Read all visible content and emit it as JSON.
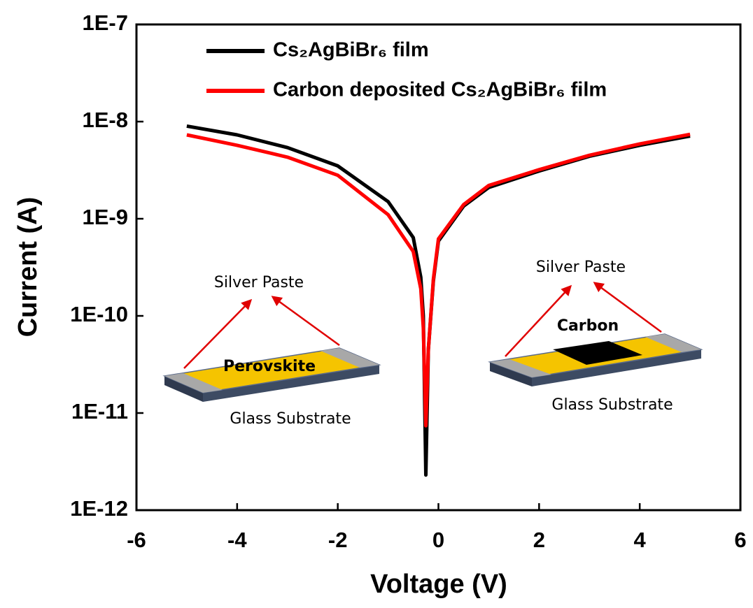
{
  "chart_data": {
    "type": "line",
    "x_label": "Voltage (V)",
    "y_label": "Current (A)",
    "xlim": [
      -6,
      6
    ],
    "xticks": [
      -6,
      -4,
      -2,
      0,
      2,
      4,
      6
    ],
    "ylim": [
      1e-12,
      1e-07
    ],
    "y_scale": "log",
    "yticks": [
      {
        "value": 1e-12,
        "label": "1E-12"
      },
      {
        "value": 1e-11,
        "label": "1E-11"
      },
      {
        "value": 1e-10,
        "label": "1E-10"
      },
      {
        "value": 1e-09,
        "label": "1E-9"
      },
      {
        "value": 1e-08,
        "label": "1E-8"
      },
      {
        "value": 1e-07,
        "label": "1E-7"
      }
    ],
    "legend": "upper left",
    "x": [
      -5,
      -4,
      -3,
      -2,
      -1,
      -0.5,
      -0.35,
      -0.3,
      -0.25,
      -0.2,
      -0.1,
      0,
      0.5,
      1,
      2,
      3,
      4,
      5
    ],
    "series": [
      {
        "name": "Cs₂AgBiBr₆ film",
        "color": "#000000",
        "values": [
          9e-09,
          7.3e-09,
          5.4e-09,
          3.5e-09,
          1.5e-09,
          6.4e-10,
          2.5e-10,
          1e-10,
          2.3e-12,
          4.5e-11,
          2.3e-10,
          5.9e-10,
          1.35e-09,
          2.1e-09,
          3.1e-09,
          4.4e-09,
          5.7e-09,
          7.1e-09
        ]
      },
      {
        "name": "Carbon deposited Cs₂AgBiBr₆ film",
        "color": "#ff0000",
        "values": [
          7.3e-09,
          5.7e-09,
          4.3e-09,
          2.8e-09,
          1.1e-09,
          4.6e-10,
          1.9e-10,
          7.5e-11,
          7.4e-12,
          4.5e-11,
          2.4e-10,
          6.2e-10,
          1.4e-09,
          2.2e-09,
          3.2e-09,
          4.5e-09,
          5.9e-09,
          7.4e-09
        ]
      }
    ],
    "annotations": [
      "Silver Paste",
      "Perovskite",
      "Glass Substrate",
      "Silver Paste",
      "Carbon",
      "Glass Substrate"
    ]
  }
}
